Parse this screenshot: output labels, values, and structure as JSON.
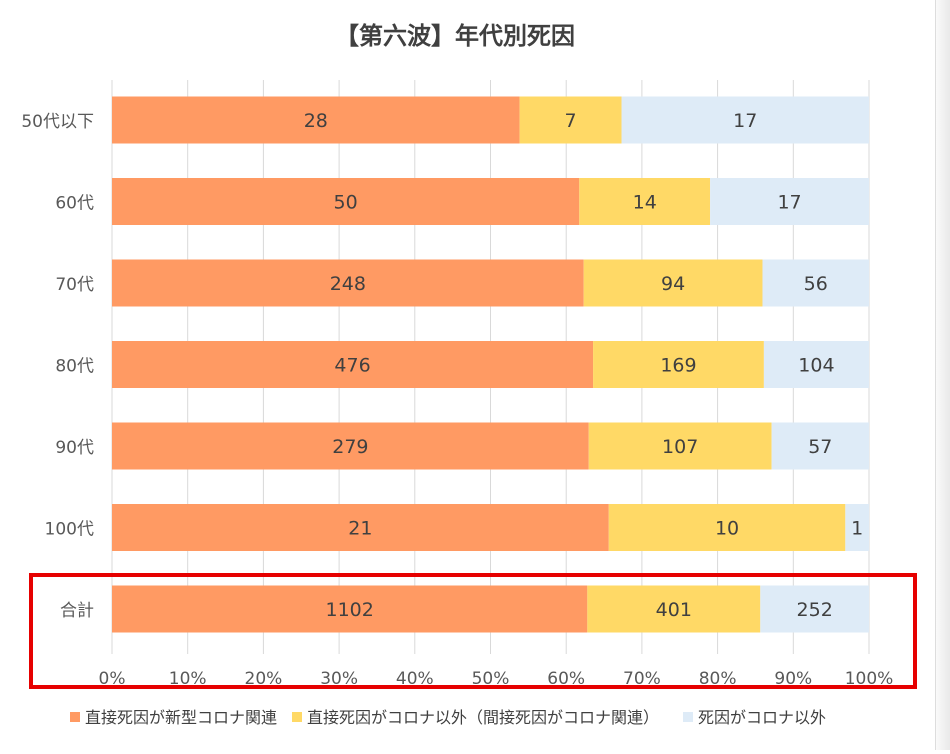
{
  "chart_data": {
    "type": "bar",
    "orientation": "horizontal",
    "stacked": "percent",
    "title": "【第六波】年代別死因",
    "categories": [
      "50代以下",
      "60代",
      "70代",
      "80代",
      "90代",
      "100代",
      "合計"
    ],
    "series": [
      {
        "name": "直接死因が新型コロナ関連",
        "values": [
          28,
          50,
          248,
          476,
          279,
          21,
          1102
        ],
        "color": "#ff9a63"
      },
      {
        "name": "直接死因がコロナ以外（間接死因がコロナ関連）",
        "values": [
          7,
          14,
          94,
          169,
          107,
          10,
          401
        ],
        "color": "#ffd966"
      },
      {
        "name": "死因がコロナ以外",
        "values": [
          17,
          17,
          56,
          104,
          57,
          1,
          252
        ],
        "color": "#deebf7"
      }
    ],
    "x_ticks": [
      "0%",
      "10%",
      "20%",
      "30%",
      "40%",
      "50%",
      "60%",
      "70%",
      "80%",
      "90%",
      "100%"
    ],
    "xlim": [
      0,
      100
    ],
    "grid": true,
    "legend_position": "bottom",
    "highlight": {
      "category": "合計",
      "color": "#e60000"
    }
  }
}
